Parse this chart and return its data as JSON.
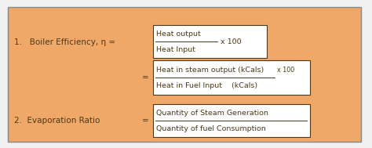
{
  "bg_color": "#F0A868",
  "outer_bg": "#F0F0F0",
  "box_color": "#FFFFFF",
  "text_color": "#4A3A1A",
  "line_color": "#4A3A1A",
  "border_color": "#888888",
  "title1": "1.   Boiler Efficiency, η =",
  "title2": "2.  Evaporation Ratio",
  "eq_sign": "=",
  "box1_num": "Heat output",
  "box1_den": "Heat Input",
  "box1_suffix": "x 100",
  "box2_num": "Heat in steam output (kCals)",
  "box2_den": "Heat in Fuel Input    (kCals)",
  "box2_suffix": "x 100",
  "box3_num": "Quantity of Steam Generation",
  "box3_den": "Quantity of fuel Consumption",
  "font_size_label": 7.5,
  "font_size_box": 6.8
}
